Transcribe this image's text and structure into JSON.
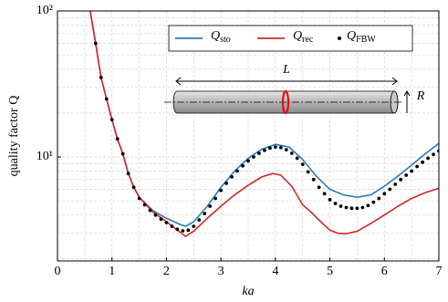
{
  "chart_data": {
    "type": "line",
    "xlabel": "ka",
    "ylabel": "quality factor Q",
    "xlim": [
      0,
      7
    ],
    "xticks": [
      0,
      1,
      2,
      3,
      4,
      5,
      6,
      7
    ],
    "xminorticks": [
      0.5,
      1.5,
      2.5,
      3.5,
      4.5,
      5.5,
      6.5
    ],
    "ylim": [
      1.94,
      100
    ],
    "yscale": "log",
    "yticks": [
      {
        "value": 10,
        "label": "10¹"
      },
      {
        "value": 100,
        "label": "10²"
      }
    ],
    "yminorticks": [
      2,
      3,
      4,
      5,
      6,
      7,
      8,
      9,
      20,
      30,
      40,
      50,
      60,
      70,
      80,
      90
    ],
    "grid": true,
    "series": [
      {
        "name": "Qsto",
        "color": "#2e7ab6",
        "style": "line",
        "x": [
          0.6,
          0.7,
          0.8,
          0.9,
          1.0,
          1.1,
          1.2,
          1.3,
          1.4,
          1.5,
          1.75,
          2.0,
          2.25,
          2.35,
          2.5,
          2.75,
          3.0,
          3.25,
          3.5,
          3.75,
          4.0,
          4.25,
          4.5,
          4.75,
          5.0,
          5.25,
          5.5,
          5.75,
          6.0,
          6.25,
          6.5,
          6.75,
          7.0
        ],
        "values": [
          100,
          60,
          35,
          25,
          18,
          13.3,
          10.5,
          7.7,
          6.2,
          5.3,
          4.3,
          3.8,
          3.45,
          3.35,
          3.6,
          4.6,
          6.2,
          8.0,
          9.8,
          11.3,
          12.2,
          11.7,
          9.6,
          7.4,
          6.0,
          5.5,
          5.3,
          5.5,
          6.3,
          7.4,
          8.8,
          10.5,
          12.4
        ]
      },
      {
        "name": "Qrec",
        "color": "#d62728",
        "style": "line",
        "x": [
          0.6,
          0.7,
          0.8,
          0.9,
          1.0,
          1.1,
          1.2,
          1.3,
          1.4,
          1.5,
          1.75,
          2.0,
          2.25,
          2.35,
          2.5,
          2.75,
          3.0,
          3.25,
          3.5,
          3.75,
          3.95,
          4.1,
          4.3,
          4.5,
          4.65,
          4.8,
          5.0,
          5.15,
          5.3,
          5.5,
          5.75,
          6.0,
          6.25,
          6.5,
          6.75,
          7.0
        ],
        "values": [
          100,
          60,
          35,
          25,
          18,
          13.3,
          10.5,
          7.7,
          6.2,
          5.3,
          4.2,
          3.6,
          3.05,
          2.86,
          3.1,
          3.8,
          4.6,
          5.5,
          6.4,
          7.3,
          7.7,
          7.5,
          6.3,
          4.7,
          4.2,
          3.7,
          3.15,
          3.0,
          2.98,
          3.1,
          3.5,
          4.0,
          4.6,
          5.2,
          5.7,
          6.1
        ]
      },
      {
        "name": "QFBW",
        "color": "#000000",
        "style": "dots",
        "x": [
          0.7,
          0.8,
          0.9,
          1.0,
          1.1,
          1.2,
          1.3,
          1.4,
          1.5,
          1.6,
          1.7,
          1.8,
          1.9,
          2.0,
          2.1,
          2.2,
          2.3,
          2.4,
          2.5,
          2.6,
          2.7,
          2.8,
          2.9,
          3.0,
          3.1,
          3.2,
          3.3,
          3.4,
          3.5,
          3.6,
          3.7,
          3.8,
          3.9,
          4.0,
          4.1,
          4.2,
          4.3,
          4.4,
          4.5,
          4.6,
          4.7,
          4.8,
          4.9,
          5.0,
          5.1,
          5.2,
          5.3,
          5.4,
          5.5,
          5.6,
          5.7,
          5.8,
          5.9,
          6.0,
          6.1,
          6.2,
          6.3,
          6.4,
          6.5,
          6.6,
          6.7,
          6.8,
          6.9,
          7.0
        ],
        "values": [
          60,
          35,
          25,
          18,
          13.3,
          10.5,
          7.7,
          6.2,
          5.2,
          4.7,
          4.3,
          4.0,
          3.75,
          3.55,
          3.35,
          3.2,
          3.12,
          3.15,
          3.35,
          3.7,
          4.1,
          4.6,
          5.2,
          5.9,
          6.6,
          7.3,
          8.0,
          8.7,
          9.4,
          10.0,
          10.6,
          11.1,
          11.5,
          11.7,
          11.6,
          11.2,
          10.6,
          9.8,
          8.9,
          7.9,
          7.0,
          6.2,
          5.6,
          5.1,
          4.8,
          4.6,
          4.5,
          4.45,
          4.45,
          4.5,
          4.65,
          4.9,
          5.2,
          5.6,
          6.0,
          6.5,
          7.0,
          7.5,
          8.0,
          8.6,
          9.2,
          9.8,
          10.4,
          11.0
        ]
      }
    ],
    "inset": {
      "length_label": "L",
      "radius_label": "R"
    }
  }
}
